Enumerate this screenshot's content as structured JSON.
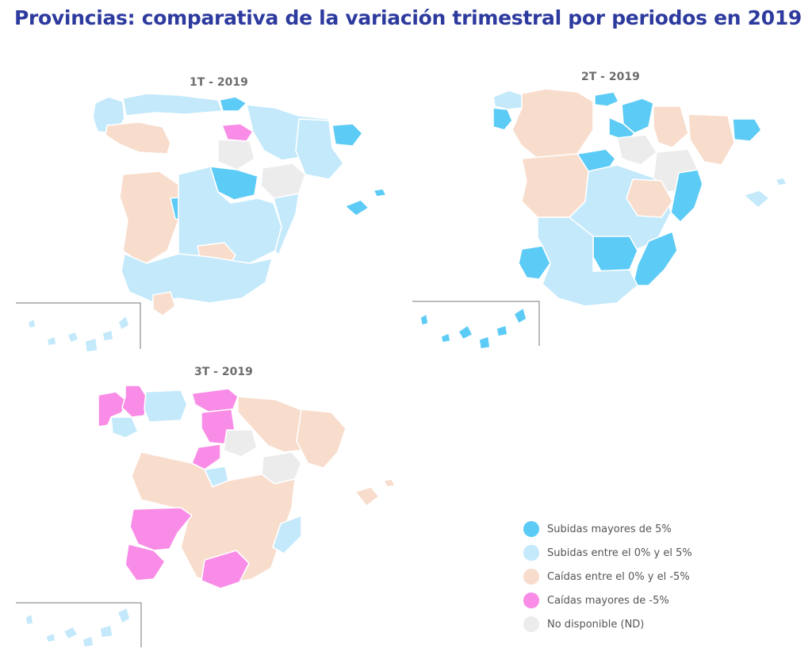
{
  "title": "Provincias: comparativa de la variación trimestral por periodos en 2019",
  "colors": {
    "up_more_5": "#5ccbf5",
    "up_0_5": "#c3e9fb",
    "down_0_5": "#f8dccc",
    "down_more_5": "#f98ce6",
    "nd": "#ececec"
  },
  "maps": [
    {
      "title": "1T - 2019",
      "regions": [
        {
          "id": "galicia",
          "status": "up_0_5"
        },
        {
          "id": "asturias-cantabria",
          "status": "up_0_5"
        },
        {
          "id": "basque",
          "status": "up_more_5"
        },
        {
          "id": "la-rioja",
          "status": "down_more_5"
        },
        {
          "id": "navarra-aragon-north",
          "status": "up_0_5"
        },
        {
          "id": "catalonia",
          "status": "up_0_5"
        },
        {
          "id": "girona",
          "status": "up_more_5"
        },
        {
          "id": "leon-zamora",
          "status": "down_0_5"
        },
        {
          "id": "burgos-soria",
          "status": "nd"
        },
        {
          "id": "valladolid-segovia",
          "status": "up_more_5"
        },
        {
          "id": "teruel",
          "status": "nd"
        },
        {
          "id": "west-castile-extremadura",
          "status": "down_0_5"
        },
        {
          "id": "madrid-toledo",
          "status": "up_more_5"
        },
        {
          "id": "central-south",
          "status": "up_0_5"
        },
        {
          "id": "valencia-coast",
          "status": "up_0_5"
        },
        {
          "id": "jaen",
          "status": "down_0_5"
        },
        {
          "id": "andalusia",
          "status": "up_0_5"
        },
        {
          "id": "cadiz",
          "status": "down_0_5"
        },
        {
          "id": "balearics",
          "status": "up_more_5"
        },
        {
          "id": "canaries",
          "status": "up_0_5"
        }
      ]
    },
    {
      "title": "2T - 2019",
      "regions": [
        {
          "id": "galicia-north",
          "status": "up_0_5"
        },
        {
          "id": "galicia-west",
          "status": "up_more_5"
        },
        {
          "id": "north-interior",
          "status": "down_0_5"
        },
        {
          "id": "basque",
          "status": "up_more_5"
        },
        {
          "id": "navarra",
          "status": "up_more_5"
        },
        {
          "id": "rioja-zone",
          "status": "up_more_5"
        },
        {
          "id": "burgos-soria",
          "status": "nd"
        },
        {
          "id": "huesca",
          "status": "down_0_5"
        },
        {
          "id": "catalonia",
          "status": "down_0_5"
        },
        {
          "id": "girona",
          "status": "up_more_5"
        },
        {
          "id": "valladolid",
          "status": "up_more_5"
        },
        {
          "id": "zaragoza-teruel",
          "status": "nd"
        },
        {
          "id": "castellon-valencia",
          "status": "up_more_5"
        },
        {
          "id": "west",
          "status": "down_0_5"
        },
        {
          "id": "central",
          "status": "up_0_5"
        },
        {
          "id": "cuenca",
          "status": "down_0_5"
        },
        {
          "id": "huelva",
          "status": "up_more_5"
        },
        {
          "id": "cordoba-jaen",
          "status": "up_more_5"
        },
        {
          "id": "murcia-almeria",
          "status": "up_more_5"
        },
        {
          "id": "south",
          "status": "up_0_5"
        },
        {
          "id": "balearics",
          "status": "up_0_5"
        },
        {
          "id": "canaries",
          "status": "up_more_5"
        }
      ]
    },
    {
      "title": "3T - 2019",
      "regions": [
        {
          "id": "galicia-coast",
          "status": "down_more_5"
        },
        {
          "id": "lugo",
          "status": "down_more_5"
        },
        {
          "id": "ourense",
          "status": "up_0_5"
        },
        {
          "id": "asturias",
          "status": "up_0_5"
        },
        {
          "id": "cantabria",
          "status": "down_more_5"
        },
        {
          "id": "burgos-alava",
          "status": "down_more_5"
        },
        {
          "id": "north-east",
          "status": "down_0_5"
        },
        {
          "id": "catalonia",
          "status": "down_0_5"
        },
        {
          "id": "soria",
          "status": "nd"
        },
        {
          "id": "segovia",
          "status": "down_more_5"
        },
        {
          "id": "teruel",
          "status": "nd"
        },
        {
          "id": "madrid",
          "status": "up_0_5"
        },
        {
          "id": "central",
          "status": "down_0_5"
        },
        {
          "id": "extremadura",
          "status": "down_more_5"
        },
        {
          "id": "huelva-sevilla",
          "status": "down_more_5"
        },
        {
          "id": "granada",
          "status": "down_more_5"
        },
        {
          "id": "murcia",
          "status": "up_0_5"
        },
        {
          "id": "balearics",
          "status": "down_0_5"
        },
        {
          "id": "canaries",
          "status": "up_0_5"
        }
      ]
    }
  ],
  "legend": [
    {
      "key": "up_more_5",
      "label": "Subidas mayores de 5%"
    },
    {
      "key": "up_0_5",
      "label": "Subidas entre el 0% y el 5%"
    },
    {
      "key": "down_0_5",
      "label": "Caídas entre el 0% y el -5%"
    },
    {
      "key": "down_more_5",
      "label": "Caídas mayores de -5%"
    },
    {
      "key": "nd",
      "label": "No disponible (ND)"
    }
  ]
}
